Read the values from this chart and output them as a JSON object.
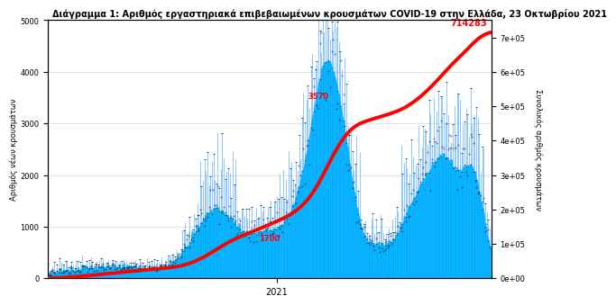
{
  "title": "Διάγραμμα 1: Αριθμός εργαστηριακά επιβεβαιωμένων κρουσμάτων COVID-19 στην Ελλάδα, 23 Οκτωβρίου 2021",
  "ylabel_left": "Αριθμός νέων κρουσμάτων",
  "ylabel_right": "Συνολικός αριθμός κρουσμάτων",
  "xlabel": "2021",
  "ylim_left": [
    0,
    5000
  ],
  "ylim_right": [
    0,
    750000
  ],
  "annotation_text": "714283",
  "annotation_color": "#FF0000",
  "bar_color": "#00BFFF",
  "line_color": "#FF0000",
  "spike_color": "#1E90FF",
  "error_bar_color": "#222222",
  "background_color": "#FFFFFF",
  "plot_bg_color": "#FFFFFF",
  "ann_3570_color": "#FF0000",
  "ann_1700_color": "#FF0000",
  "right_yticks": [
    0,
    100000,
    200000,
    300000,
    400000,
    500000,
    600000,
    700000
  ],
  "right_yticklabels": [
    "0e+00",
    "1e+05",
    "2e+05",
    "3e+05",
    "4e+05",
    "5e+05",
    "6e+05",
    "7e+05"
  ]
}
